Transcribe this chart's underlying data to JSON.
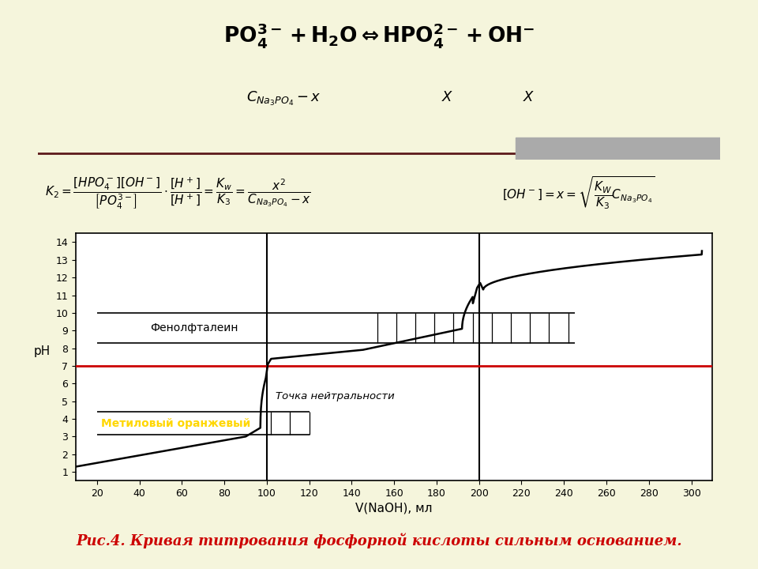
{
  "bg_color": "#f5f5dc",
  "plot_bg": "#ffffff",
  "xlabel": "V(NaOH), мл",
  "ylabel": "pH",
  "xlim": [
    10,
    310
  ],
  "ylim": [
    0.5,
    14.5
  ],
  "xticks": [
    20,
    40,
    60,
    80,
    100,
    120,
    140,
    160,
    180,
    200,
    220,
    240,
    260,
    280,
    300
  ],
  "yticks": [
    1,
    2,
    3,
    4,
    5,
    6,
    7,
    8,
    9,
    10,
    11,
    12,
    13,
    14
  ],
  "ph7_line_color": "#cc0000",
  "vline1_x": 100,
  "vline2_x": 200,
  "indicator1_label": "Фенолфталеин",
  "indicator1_ymin": 8.3,
  "indicator1_ymax": 10.0,
  "indicator1_xmin": 20,
  "indicator1_xmax": 245,
  "indicator2_label": "Метиловый оранжевый",
  "indicator2_ymin": 3.1,
  "indicator2_ymax": 4.4,
  "indicator2_xmin": 20,
  "indicator2_xmax": 120,
  "indicator2_color": "#ffd700",
  "neutrality_label": "Точка нейтральности",
  "caption": "Рис.4. Кривая титрования фосфорной кислоты сильным основанием.",
  "caption_color": "#cc0000"
}
